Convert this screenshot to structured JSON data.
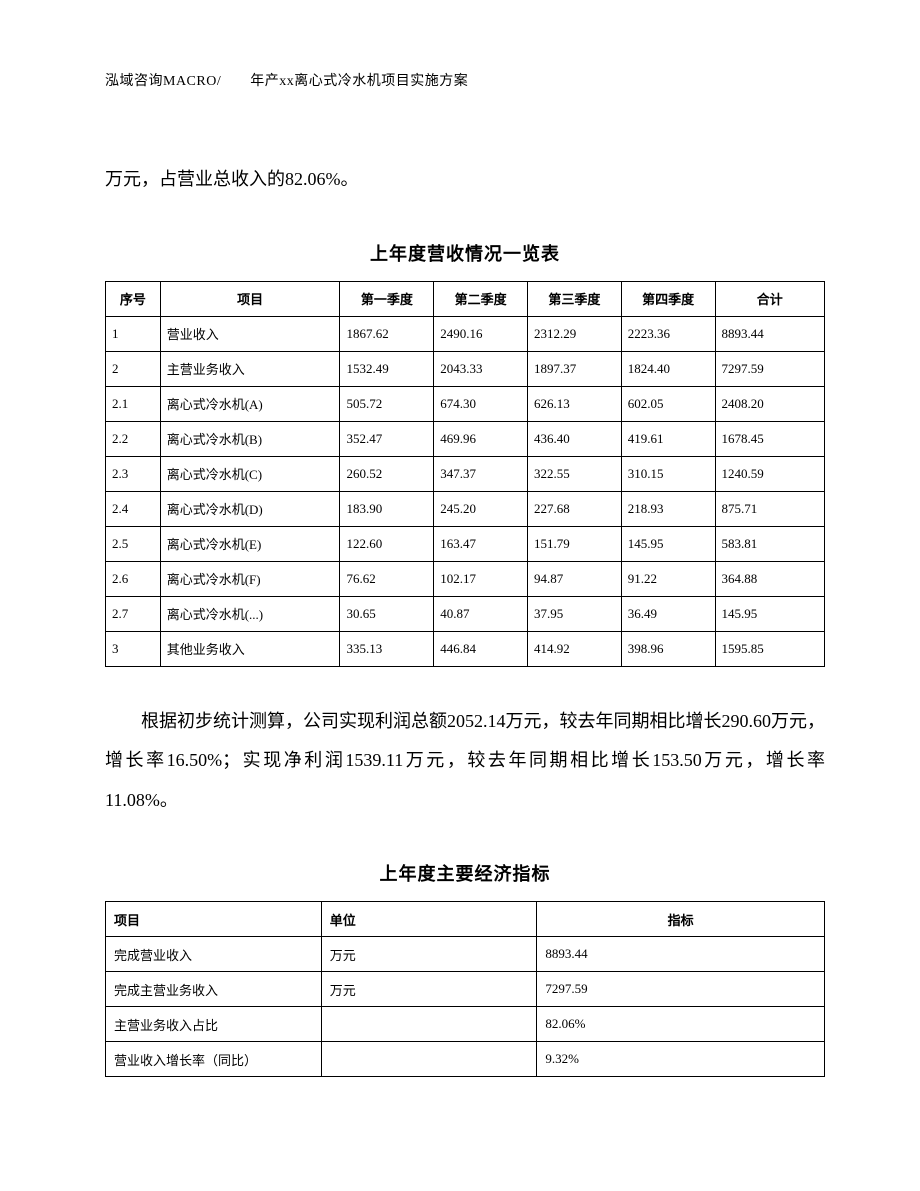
{
  "header": "泓域咨询MACRO/　　年产xx离心式冷水机项目实施方案",
  "intro_text": "万元，占营业总收入的82.06%。",
  "table1": {
    "title": "上年度营收情况一览表",
    "columns": [
      "序号",
      "项目",
      "第一季度",
      "第二季度",
      "第三季度",
      "第四季度",
      "合计"
    ],
    "rows": [
      [
        "1",
        "营业收入",
        "1867.62",
        "2490.16",
        "2312.29",
        "2223.36",
        "8893.44"
      ],
      [
        "2",
        "主营业务收入",
        "1532.49",
        "2043.33",
        "1897.37",
        "1824.40",
        "7297.59"
      ],
      [
        "2.1",
        "离心式冷水机(A)",
        "505.72",
        "674.30",
        "626.13",
        "602.05",
        "2408.20"
      ],
      [
        "2.2",
        "离心式冷水机(B)",
        "352.47",
        "469.96",
        "436.40",
        "419.61",
        "1678.45"
      ],
      [
        "2.3",
        "离心式冷水机(C)",
        "260.52",
        "347.37",
        "322.55",
        "310.15",
        "1240.59"
      ],
      [
        "2.4",
        "离心式冷水机(D)",
        "183.90",
        "245.20",
        "227.68",
        "218.93",
        "875.71"
      ],
      [
        "2.5",
        "离心式冷水机(E)",
        "122.60",
        "163.47",
        "151.79",
        "145.95",
        "583.81"
      ],
      [
        "2.6",
        "离心式冷水机(F)",
        "76.62",
        "102.17",
        "94.87",
        "91.22",
        "364.88"
      ],
      [
        "2.7",
        "离心式冷水机(...)",
        "30.65",
        "40.87",
        "37.95",
        "36.49",
        "145.95"
      ],
      [
        "3",
        "其他业务收入",
        "335.13",
        "446.84",
        "414.92",
        "398.96",
        "1595.85"
      ]
    ]
  },
  "para2": "根据初步统计测算，公司实现利润总额2052.14万元，较去年同期相比增长290.60万元，增长率16.50%；实现净利润1539.11万元，较去年同期相比增长153.50万元，增长率11.08%。",
  "table2": {
    "title": "上年度主要经济指标",
    "columns": [
      "项目",
      "单位",
      "指标"
    ],
    "rows": [
      [
        "完成营业收入",
        "万元",
        "8893.44"
      ],
      [
        "完成主营业务收入",
        "万元",
        "7297.59"
      ],
      [
        "主营业务收入占比",
        "",
        "82.06%"
      ],
      [
        "营业收入增长率（同比）",
        "",
        "9.32%"
      ]
    ]
  }
}
